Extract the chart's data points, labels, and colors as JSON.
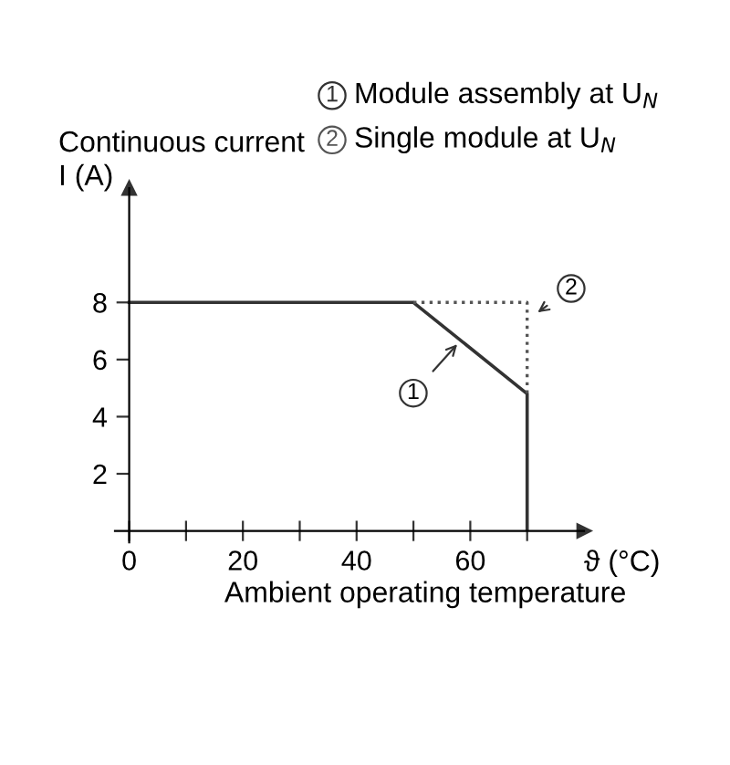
{
  "chart_data": {
    "type": "line",
    "ylabel": "Continuous current\nI (A)",
    "xlabel": "Ambient operating temperature",
    "series": [
      {
        "name": "Module assembly at U$_{N}$",
        "color": "#333333",
        "line_style": "solid",
        "x": [
          0,
          50,
          70,
          70
        ],
        "values": [
          8,
          8,
          4.8,
          0
        ]
      },
      {
        "name": "Single module at U$_{N}$",
        "color": "#555555",
        "line_style": "dotted",
        "x": [
          50,
          70,
          70
        ],
        "values": [
          8,
          8,
          4.8
        ]
      }
    ],
    "xlim": [
      -2.5,
      80
    ],
    "ylim": [
      0,
      12
    ],
    "xticks": [
      0,
      {
        "value": 10,
        "label": null
      },
      20,
      {
        "value": 30,
        "label": null
      },
      40,
      {
        "value": 50,
        "label": null
      },
      60,
      {
        "value": 70,
        "label": null
      }
    ],
    "yticks": [
      2,
      4,
      6,
      8
    ],
    "annotations": [
      {
        "text": "1",
        "x": 58,
        "y": 6.6
      },
      {
        "text": "2",
        "x": 71.5,
        "y": 7.6
      },
      "ϑ (°C)"
    ],
    "grid": false,
    "legend": "top",
    "marker": "none"
  }
}
